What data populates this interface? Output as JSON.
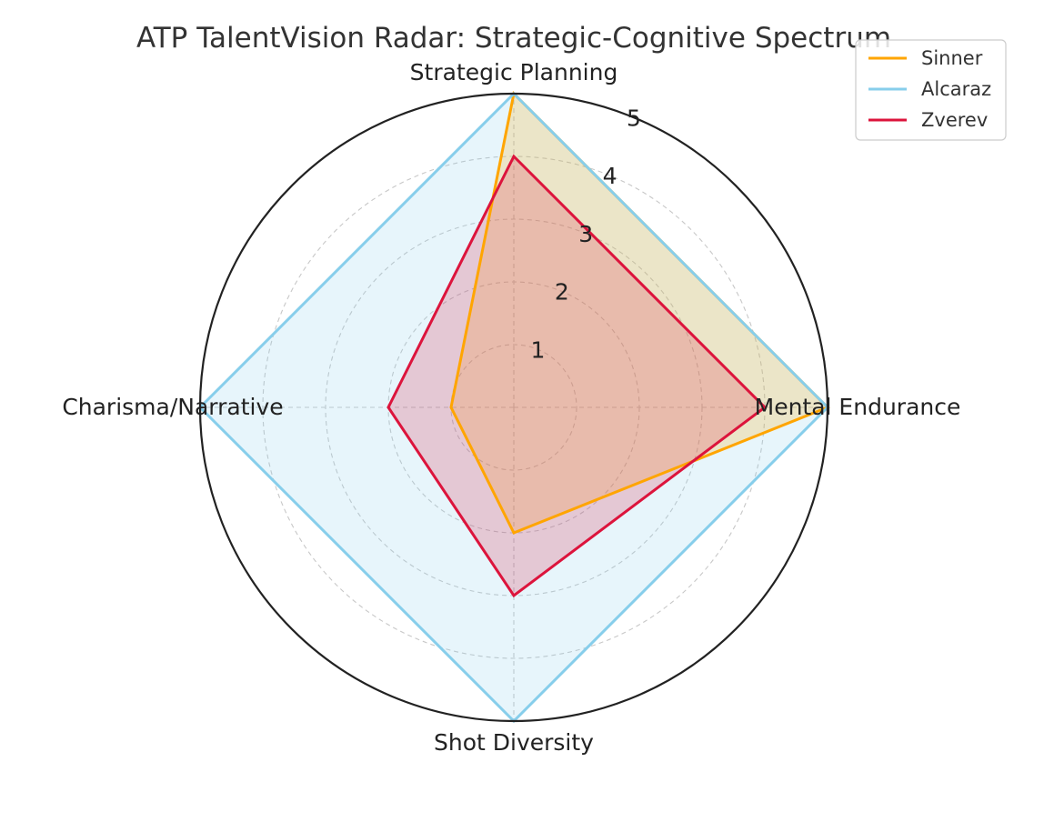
{
  "chart_data": {
    "type": "radar",
    "title": "ATP TalentVision Radar: Strategic-Cognitive Spectrum",
    "axes": [
      "Strategic Planning",
      "Mental Endurance",
      "Shot Diversity",
      "Charisma/Narrative"
    ],
    "rlim": [
      0,
      5
    ],
    "radial_ticks": [
      "1",
      "2",
      "3",
      "4",
      "5"
    ],
    "grid": true,
    "legend": "top-right",
    "series": [
      {
        "name": "Sinner",
        "values": [
          5,
          5,
          2,
          1
        ],
        "color": "#FFA500",
        "fill": "#FFA500"
      },
      {
        "name": "Alcaraz",
        "values": [
          5,
          5,
          5,
          5
        ],
        "color": "#87CEEB",
        "fill": "#87CEEB"
      },
      {
        "name": "Zverev",
        "values": [
          4,
          4,
          3,
          2
        ],
        "color": "#DC143C",
        "fill": "#DC143C"
      }
    ]
  }
}
